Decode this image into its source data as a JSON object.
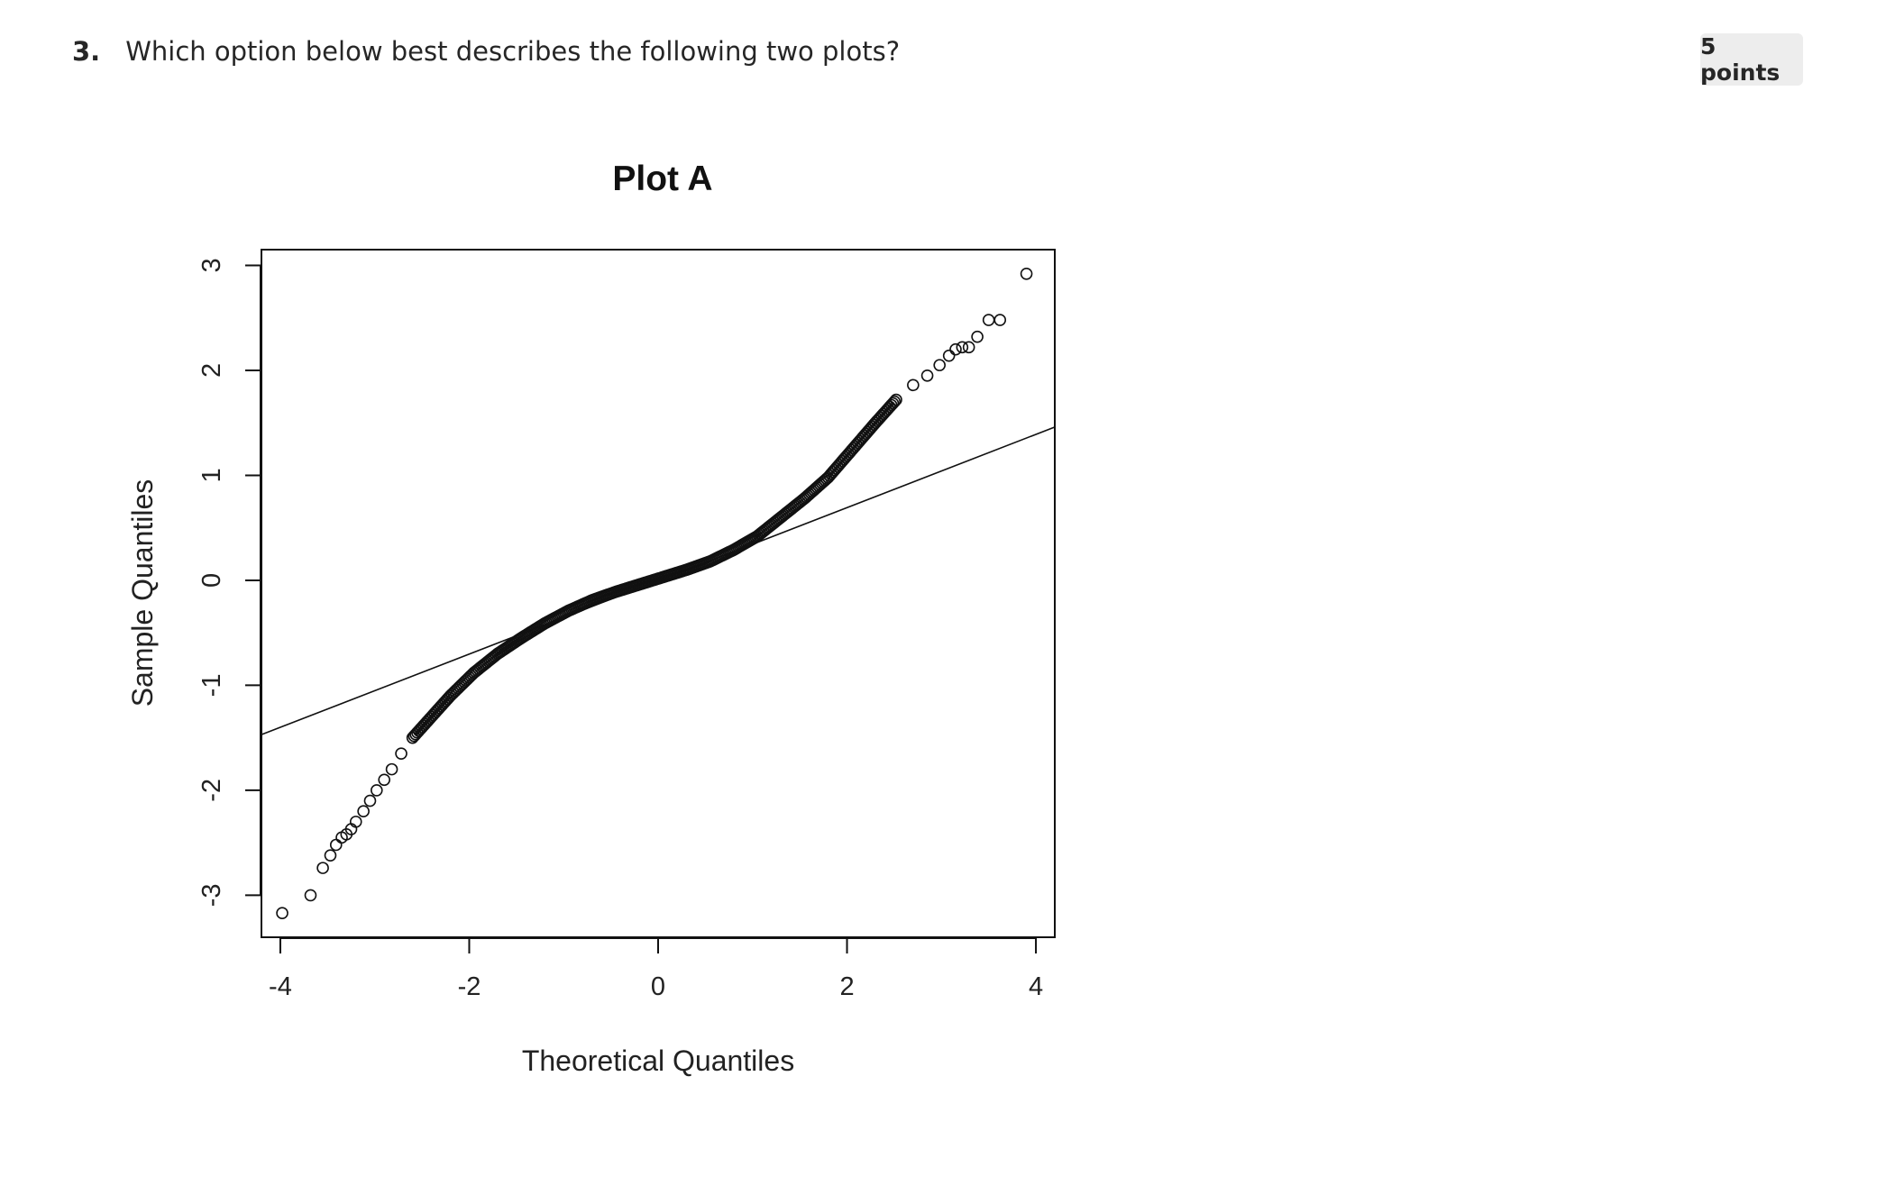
{
  "question": {
    "number": "3.",
    "text": "Which option below best describes the following two plots?",
    "points": "5 points"
  },
  "chart_data": {
    "type": "scatter",
    "title": "Plot A",
    "xlabel": "Theoretical Quantiles",
    "ylabel": "Sample Quantiles",
    "xlim": [
      -4.2,
      4.2
    ],
    "ylim": [
      -3.4,
      3.15
    ],
    "x_ticks": [
      -4,
      -2,
      0,
      2,
      4
    ],
    "y_ticks": [
      -3,
      -2,
      -1,
      0,
      1,
      2,
      3
    ],
    "reference_line": {
      "x": [
        -4.2,
        4.2
      ],
      "y": [
        -1.47,
        1.46
      ]
    },
    "points": {
      "x": [
        -3.98,
        -3.68,
        -3.55,
        -3.47,
        -3.41,
        -3.35,
        -3.3,
        -3.25,
        -3.2,
        -3.12,
        -3.05,
        -2.98,
        -2.9,
        -2.82,
        -2.72,
        -2.6,
        -2.45,
        -2.2,
        -1.95,
        -1.7,
        -1.45,
        -1.2,
        -0.95,
        -0.7,
        -0.45,
        -0.2,
        0.05,
        0.3,
        0.55,
        0.8,
        1.05,
        1.3,
        1.55,
        1.8,
        2.05,
        2.3,
        2.52,
        2.7,
        2.85,
        2.98,
        3.08,
        3.15,
        3.22,
        3.29,
        3.38,
        3.5,
        3.62,
        3.9
      ],
      "y": [
        -3.17,
        -3.0,
        -2.74,
        -2.62,
        -2.52,
        -2.45,
        -2.42,
        -2.37,
        -2.3,
        -2.2,
        -2.1,
        -2.0,
        -1.9,
        -1.8,
        -1.65,
        -1.5,
        -1.35,
        -1.1,
        -0.88,
        -0.7,
        -0.55,
        -0.41,
        -0.29,
        -0.19,
        -0.11,
        -0.04,
        0.03,
        0.1,
        0.18,
        0.29,
        0.42,
        0.6,
        0.78,
        0.98,
        1.24,
        1.5,
        1.72,
        1.86,
        1.95,
        2.05,
        2.14,
        2.2,
        2.22,
        2.22,
        2.32,
        2.48,
        2.48,
        2.92
      ]
    }
  }
}
